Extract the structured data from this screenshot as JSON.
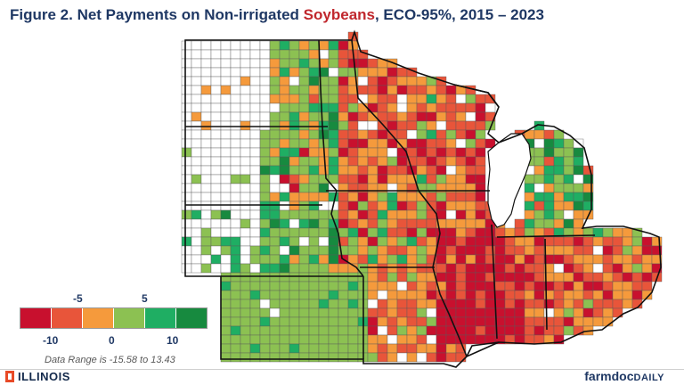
{
  "title": {
    "prefix": "Figure 2. Net Payments on Non-irrigated ",
    "crop": "Soybeans",
    "suffix": ", ECO-95%, 2015 – 2023"
  },
  "legend": {
    "top_labels": [
      "-5",
      "5"
    ],
    "bottom_labels": [
      "-10",
      "0",
      "10"
    ],
    "colors": [
      "#c8102e",
      "#e8553a",
      "#f59a3c",
      "#8cc152",
      "#1fae63",
      "#178a3f"
    ]
  },
  "data_range": "Data Range is -15.58 to 13.43",
  "branding": {
    "university": "ILLINOIS",
    "publisher_main": "farmdoc",
    "publisher_sub": "DAILY"
  },
  "palette": {
    "no_data": "#ffffff",
    "county_border": "#5a5a5a",
    "state_border": "#111111"
  }
}
